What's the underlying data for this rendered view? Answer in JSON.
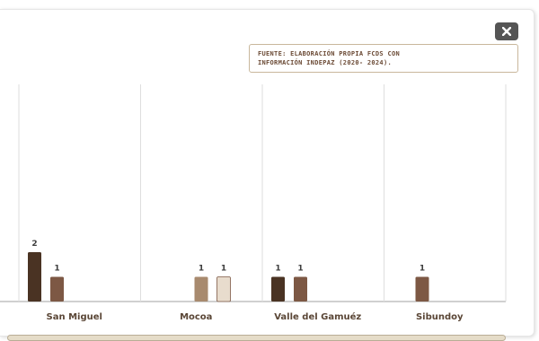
{
  "source": {
    "line1": "FUENTE: ELABORACIÓN PROPIA FCDS CON",
    "line2": "INFORMACIÓN INDEPAZ (2020- 2024)."
  },
  "close_icon_name": "close-icon",
  "chart_data": {
    "type": "bar",
    "categories": [
      "San Miguel",
      "Mocoa",
      "Valle del Gamuéz",
      "Sibundoy"
    ],
    "series": [
      {
        "color": "#4a3323",
        "values": [
          2,
          null,
          1,
          null
        ]
      },
      {
        "color": "#7d5844",
        "values": [
          1,
          null,
          1,
          1
        ]
      },
      {
        "color": "#a88a6e",
        "values": [
          null,
          1,
          null,
          null
        ]
      },
      {
        "color": "#e8dccd",
        "values": [
          null,
          1,
          null,
          null
        ]
      }
    ],
    "ylim": [
      0,
      2.1
    ],
    "grid": false,
    "xlabel": "",
    "ylabel": ""
  }
}
